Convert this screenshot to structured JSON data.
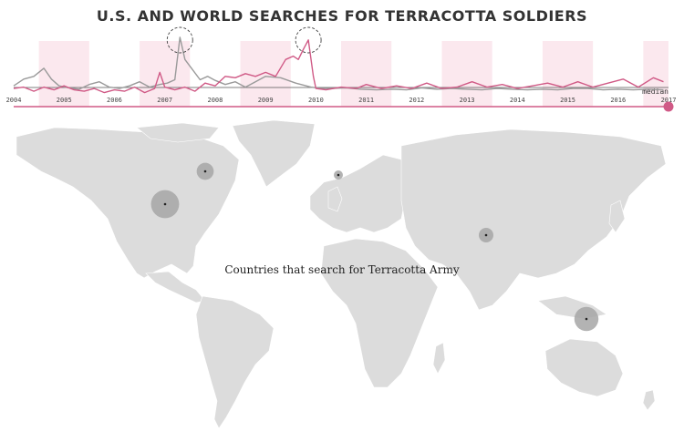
{
  "title": "U.S. AND WORLD SEARCHES FOR TERRACOTTA SOLDIERS",
  "map_caption": "Countries that search for Terracotta Army",
  "colors": {
    "us_series": "#d05a86",
    "world_series": "#9a9a9a",
    "shade": "#fbe8ee",
    "slider": "#d05a86",
    "land": "#dcdcdc",
    "bubble": "#a6a6a6"
  },
  "chart_data": {
    "type": "line",
    "title": "U.S. AND WORLD SEARCHES FOR TERRACOTTA SOLDIERS",
    "xlabel": "",
    "ylabel": "",
    "xlim": [
      2004,
      2017
    ],
    "ylim": [
      0,
      100
    ],
    "median_label": "median",
    "median_value": 14,
    "years": [
      "2004",
      "2005",
      "2006",
      "2007",
      "2008",
      "2009",
      "2010",
      "2011",
      "2012",
      "2013",
      "2014",
      "2015",
      "2016",
      "2017"
    ],
    "shaded_years": [
      "2005",
      "2007",
      "2009",
      "2011",
      "2013",
      "2015",
      "2017"
    ],
    "series": [
      {
        "key": "world",
        "values": [
          [
            2004,
            16
          ],
          [
            2004.2,
            26
          ],
          [
            2004.4,
            30
          ],
          [
            2004.6,
            42
          ],
          [
            2004.75,
            26
          ],
          [
            2004.9,
            16
          ],
          [
            2005.1,
            13
          ],
          [
            2005.3,
            11
          ],
          [
            2005.5,
            18
          ],
          [
            2005.7,
            22
          ],
          [
            2005.9,
            14
          ],
          [
            2006.1,
            12
          ],
          [
            2006.3,
            16
          ],
          [
            2006.5,
            22
          ],
          [
            2006.7,
            14
          ],
          [
            2006.9,
            18
          ],
          [
            2007.05,
            20
          ],
          [
            2007.2,
            25
          ],
          [
            2007.3,
            88
          ],
          [
            2007.4,
            55
          ],
          [
            2007.5,
            45
          ],
          [
            2007.7,
            25
          ],
          [
            2007.85,
            30
          ],
          [
            2008.0,
            24
          ],
          [
            2008.2,
            18
          ],
          [
            2008.4,
            22
          ],
          [
            2008.6,
            14
          ],
          [
            2008.8,
            22
          ],
          [
            2009.0,
            30
          ],
          [
            2009.3,
            28
          ],
          [
            2009.6,
            20
          ],
          [
            2009.9,
            14
          ],
          [
            2010.1,
            12
          ],
          [
            2010.3,
            12
          ],
          [
            2010.6,
            13
          ],
          [
            2010.9,
            11
          ],
          [
            2011.2,
            10
          ],
          [
            2011.5,
            11
          ],
          [
            2011.8,
            10
          ],
          [
            2012.1,
            13
          ],
          [
            2012.4,
            11
          ],
          [
            2012.7,
            12
          ],
          [
            2013.0,
            11
          ],
          [
            2013.3,
            10
          ],
          [
            2013.6,
            12
          ],
          [
            2013.9,
            11
          ],
          [
            2014.2,
            10
          ],
          [
            2014.5,
            11
          ],
          [
            2014.8,
            10
          ],
          [
            2015.1,
            12
          ],
          [
            2015.4,
            12
          ],
          [
            2015.7,
            10
          ],
          [
            2016.0,
            11
          ],
          [
            2016.3,
            10
          ],
          [
            2016.6,
            11
          ],
          [
            2016.9,
            10
          ]
        ]
      },
      {
        "key": "us",
        "values": [
          [
            2004,
            12
          ],
          [
            2004.2,
            14
          ],
          [
            2004.4,
            8
          ],
          [
            2004.6,
            14
          ],
          [
            2004.8,
            10
          ],
          [
            2005.0,
            16
          ],
          [
            2005.2,
            10
          ],
          [
            2005.4,
            8
          ],
          [
            2005.6,
            12
          ],
          [
            2005.8,
            6
          ],
          [
            2006.0,
            10
          ],
          [
            2006.2,
            8
          ],
          [
            2006.4,
            14
          ],
          [
            2006.6,
            6
          ],
          [
            2006.8,
            12
          ],
          [
            2006.9,
            36
          ],
          [
            2007.0,
            14
          ],
          [
            2007.2,
            10
          ],
          [
            2007.4,
            14
          ],
          [
            2007.6,
            8
          ],
          [
            2007.8,
            20
          ],
          [
            2008.0,
            16
          ],
          [
            2008.2,
            30
          ],
          [
            2008.4,
            28
          ],
          [
            2008.6,
            34
          ],
          [
            2008.8,
            30
          ],
          [
            2009.0,
            36
          ],
          [
            2009.2,
            30
          ],
          [
            2009.4,
            55
          ],
          [
            2009.55,
            60
          ],
          [
            2009.65,
            55
          ],
          [
            2009.75,
            70
          ],
          [
            2009.85,
            84
          ],
          [
            2009.95,
            30
          ],
          [
            2010.0,
            12
          ],
          [
            2010.2,
            10
          ],
          [
            2010.5,
            14
          ],
          [
            2010.8,
            12
          ],
          [
            2011.0,
            18
          ],
          [
            2011.3,
            12
          ],
          [
            2011.6,
            16
          ],
          [
            2011.9,
            12
          ],
          [
            2012.2,
            20
          ],
          [
            2012.5,
            12
          ],
          [
            2012.8,
            14
          ],
          [
            2013.1,
            22
          ],
          [
            2013.4,
            14
          ],
          [
            2013.7,
            18
          ],
          [
            2014.0,
            12
          ],
          [
            2014.3,
            16
          ],
          [
            2014.6,
            20
          ],
          [
            2014.9,
            14
          ],
          [
            2015.2,
            22
          ],
          [
            2015.5,
            14
          ],
          [
            2015.8,
            20
          ],
          [
            2016.1,
            26
          ],
          [
            2016.4,
            14
          ],
          [
            2016.7,
            28
          ],
          [
            2016.9,
            22
          ]
        ]
      }
    ],
    "highlights": [
      2007.3,
      2009.85
    ]
  },
  "map_data": {
    "type": "bubble-map",
    "bubbles": [
      {
        "lon": -75,
        "lat": 56,
        "value": 6
      },
      {
        "lon": -97,
        "lat": 38,
        "value": 20
      },
      {
        "lon": -2,
        "lat": 54,
        "value": 1
      },
      {
        "lon": 79,
        "lat": 21,
        "value": 4
      },
      {
        "lon": 134,
        "lat": -25,
        "value": 14
      }
    ]
  }
}
